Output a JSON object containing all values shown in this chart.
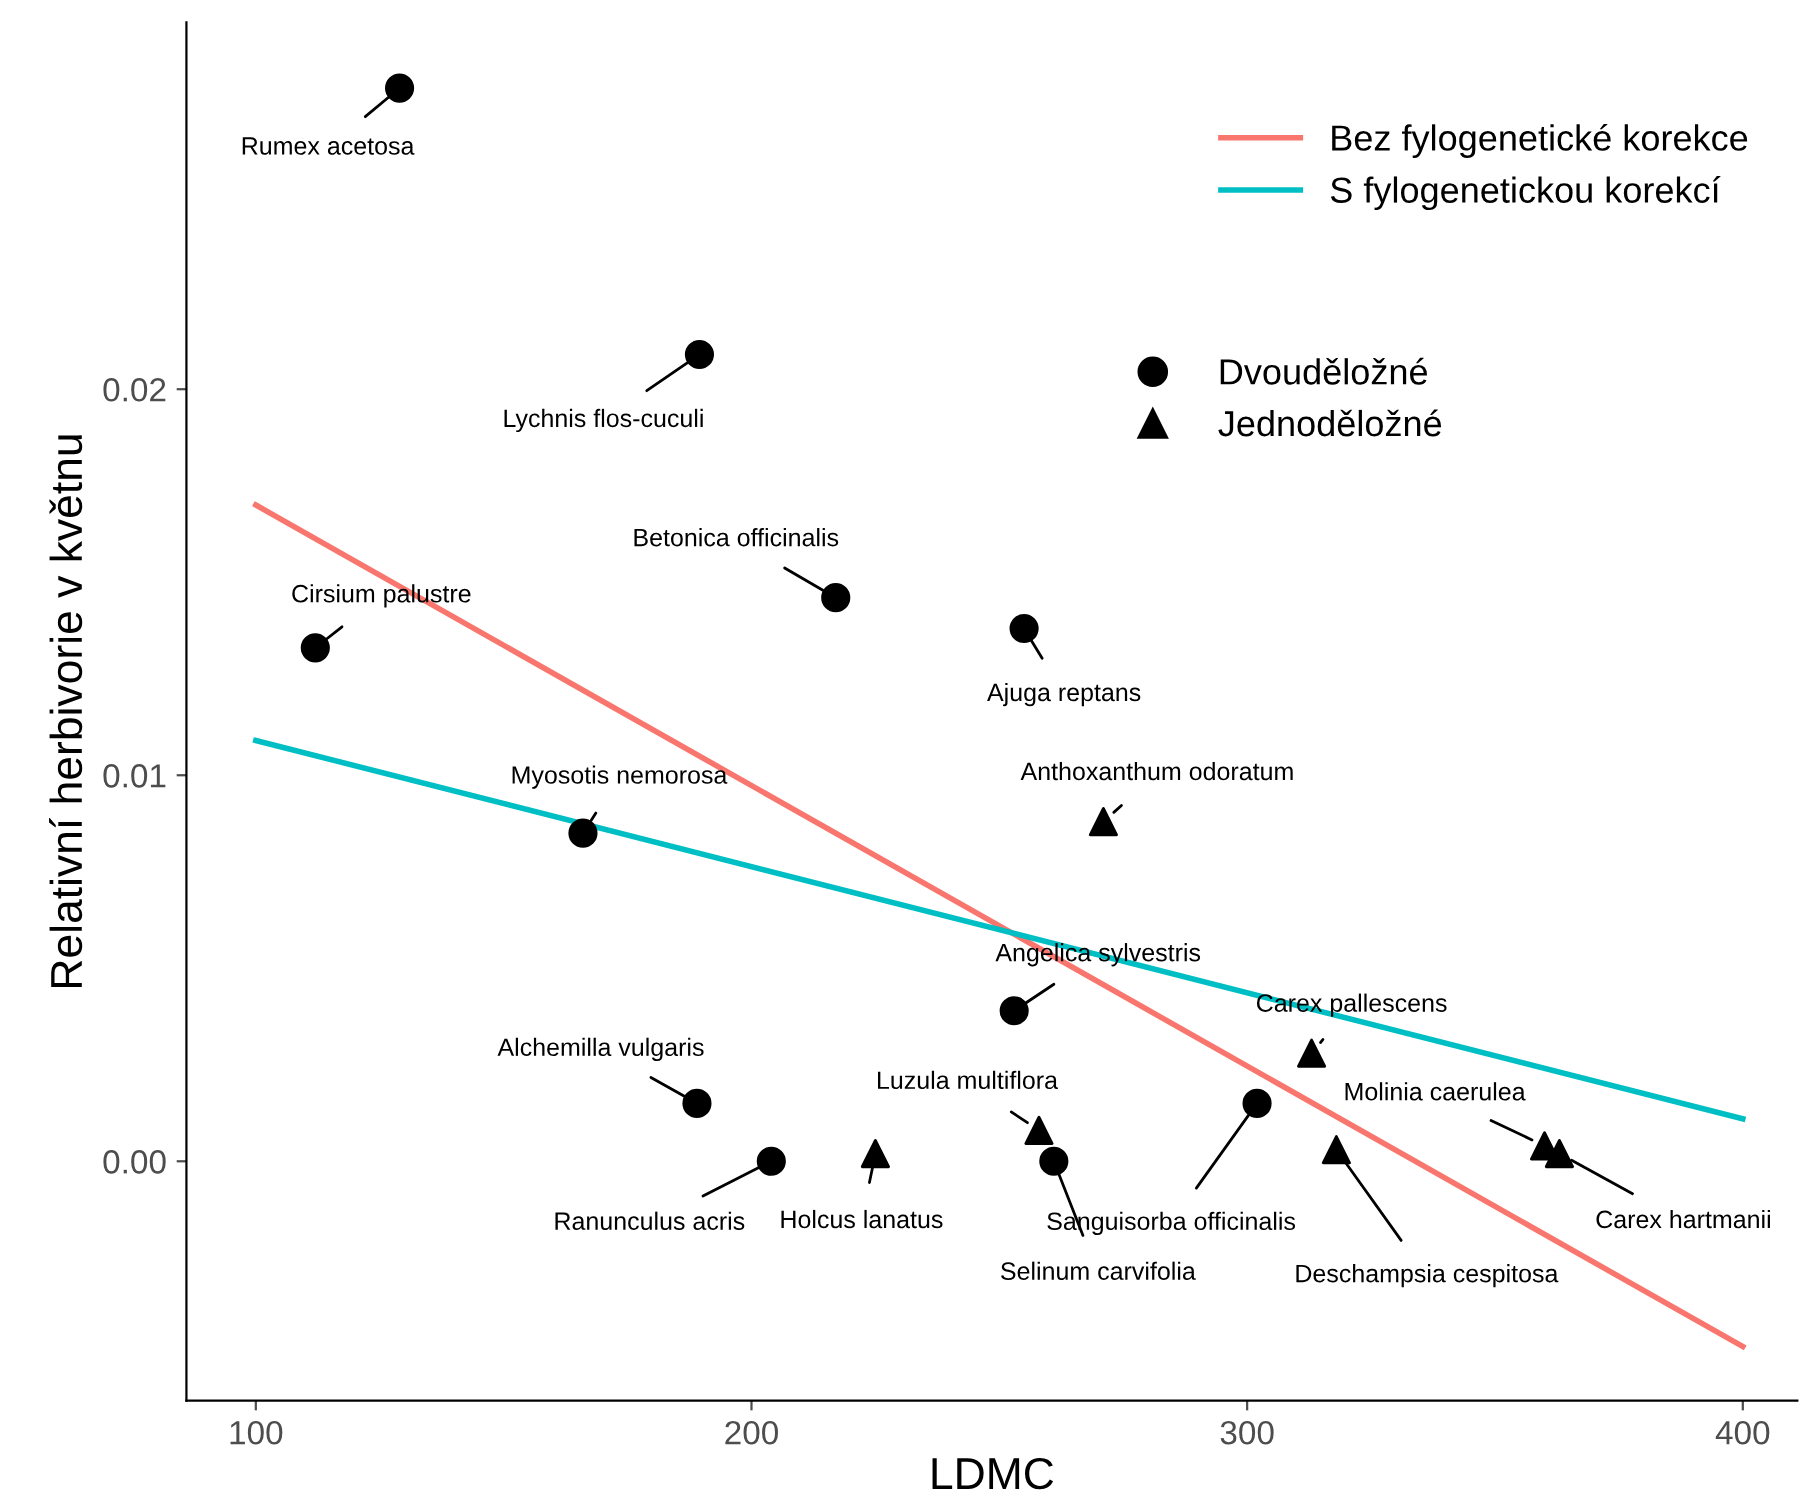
{
  "chart_data": {
    "type": "scatter",
    "xlabel": "LDMC",
    "ylabel": "Relativní herbivorie v květnu",
    "xlim": [
      86,
      411
    ],
    "ylim": [
      -0.0062,
      0.0295
    ],
    "xticks": [
      100,
      200,
      300,
      400
    ],
    "yticks": [
      {
        "value": 0,
        "label": "0.00"
      },
      {
        "value": 0.01,
        "label": "0.01"
      },
      {
        "value": 0.02,
        "label": "0.02"
      }
    ],
    "grid": false,
    "legend": "top right",
    "series": [
      {
        "name": "Bez fylogenetické korekce",
        "type": "line",
        "color": "#f8766d",
        "x": [
          100,
          400
        ],
        "values": [
          0.017,
          -0.0048
        ],
        "line_style": "solid"
      },
      {
        "name": "S fylogenetickou korekcí",
        "type": "line",
        "color": "#00bfc4",
        "x": [
          100,
          400
        ],
        "values": [
          0.0109,
          0.0011
        ],
        "line_style": "solid"
      },
      {
        "name": "Dvouděložné",
        "color": "#000000",
        "marker": "circle",
        "x": [
          129,
          189.5,
          217,
          112,
          255,
          166,
          253,
          189,
          302,
          204,
          261
        ],
        "values": [
          0.0278,
          0.0209,
          0.0146,
          0.0133,
          0.0138,
          0.0085,
          0.0039,
          0.0015,
          0.0015,
          0,
          0
        ]
      },
      {
        "name": "Jednoděložné",
        "color": "#000000",
        "marker": "triangle",
        "x": [
          271,
          313,
          258,
          225,
          318,
          360,
          363
        ],
        "values": [
          0.0088,
          0.0028,
          0.0008,
          0.0002,
          0.0003,
          0.0004,
          0.0002
        ]
      }
    ],
    "annotations": [
      {
        "text": "Rumex acetosa",
        "x": 129,
        "y": 0.0278
      },
      {
        "text": "Lychnis flos-cuculi",
        "x": 189.5,
        "y": 0.0209
      },
      {
        "text": "Betonica officinalis",
        "x": 217,
        "y": 0.0146
      },
      {
        "text": "Cirsium palustre",
        "x": 112,
        "y": 0.0133
      },
      {
        "text": "Ajuga reptans",
        "x": 255,
        "y": 0.0138
      },
      {
        "text": "Myosotis nemorosa",
        "x": 166,
        "y": 0.0085
      },
      {
        "text": "Anthoxanthum odoratum",
        "x": 271,
        "y": 0.0088
      },
      {
        "text": "Angelica sylvestris",
        "x": 253,
        "y": 0.0039
      },
      {
        "text": "Carex pallescens",
        "x": 313,
        "y": 0.0028
      },
      {
        "text": "Alchemilla vulgaris",
        "x": 189,
        "y": 0.0015
      },
      {
        "text": "Luzula multiflora",
        "x": 258,
        "y": 0.0008
      },
      {
        "text": "Sanguisorba officinalis",
        "x": 302,
        "y": 0.0015
      },
      {
        "text": "Ranunculus acris",
        "x": 204,
        "y": 0
      },
      {
        "text": "Holcus lanatus",
        "x": 225,
        "y": 0.0002
      },
      {
        "text": "Selinum carvifolia",
        "x": 261,
        "y": 0
      },
      {
        "text": "Deschampsia cespitosa",
        "x": 318,
        "y": 0.0003
      },
      {
        "text": "Molinia caerulea",
        "x": 360,
        "y": 0.0004
      },
      {
        "text": "Carex hartmanii",
        "x": 363,
        "y": 0.0002
      }
    ]
  }
}
